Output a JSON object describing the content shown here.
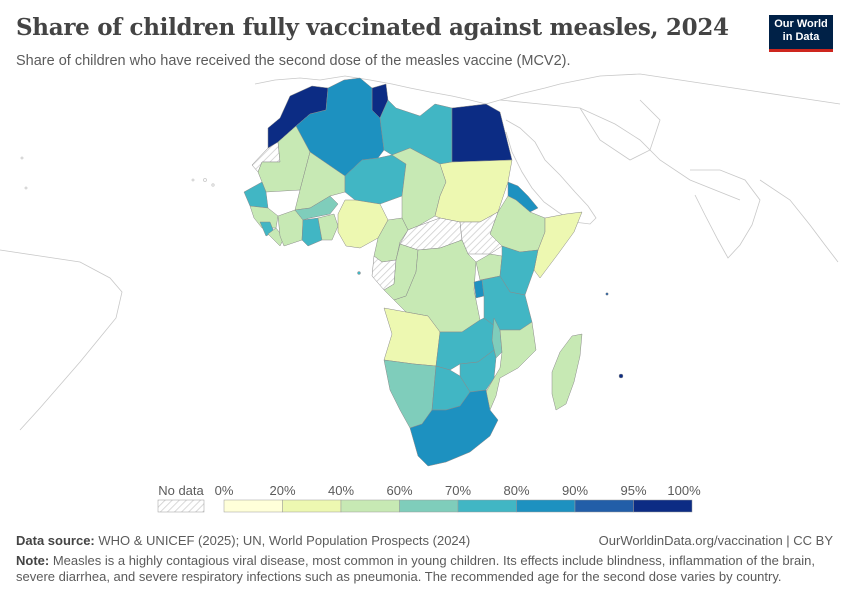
{
  "header": {
    "title": "Share of children fully vaccinated against measles, 2024",
    "subtitle": "Share of children who have received the second dose of the measles vaccine (MCV2)."
  },
  "logo": {
    "line1": "Our World",
    "line2": "in Data"
  },
  "legend": {
    "no_data_label": "No data",
    "bins": [
      {
        "label": "0%",
        "color": "#ffffd9"
      },
      {
        "label": "20%",
        "color": "#edf8b1"
      },
      {
        "label": "40%",
        "color": "#c7e9b4"
      },
      {
        "label": "60%",
        "color": "#7fcdbb"
      },
      {
        "label": "70%",
        "color": "#41b6c4"
      },
      {
        "label": "80%",
        "color": "#1d91c0"
      },
      {
        "label": "90%",
        "color": "#225ea8"
      },
      {
        "label": "95%",
        "color": "#0c2c84"
      }
    ],
    "end_label": "100%"
  },
  "colors": {
    "c20": "#ffffd9",
    "c40": "#edf8b1",
    "c60": "#c7e9b4",
    "c70": "#7fcdbb",
    "c80": "#41b6c4",
    "c90": "#1d91c0",
    "c95": "#225ea8",
    "c100": "#0c2c84",
    "no_data": "#e8e8e8",
    "ocean": "#ffffff",
    "outline": "#bdbdbd"
  },
  "footer": {
    "source_label": "Data source:",
    "source_text": "WHO & UNICEF (2025); UN, World Population Prospects (2024)",
    "url": "OurWorldinData.org/vaccination | CC BY",
    "note_label": "Note:",
    "note_text": "Measles is a highly contagious viral disease, most common in young children. Its effects include blindness, inflammation of the brain, severe diarrhea, and severe respiratory infections such as pneumonia. The recommended age for the second dose varies by country."
  }
}
